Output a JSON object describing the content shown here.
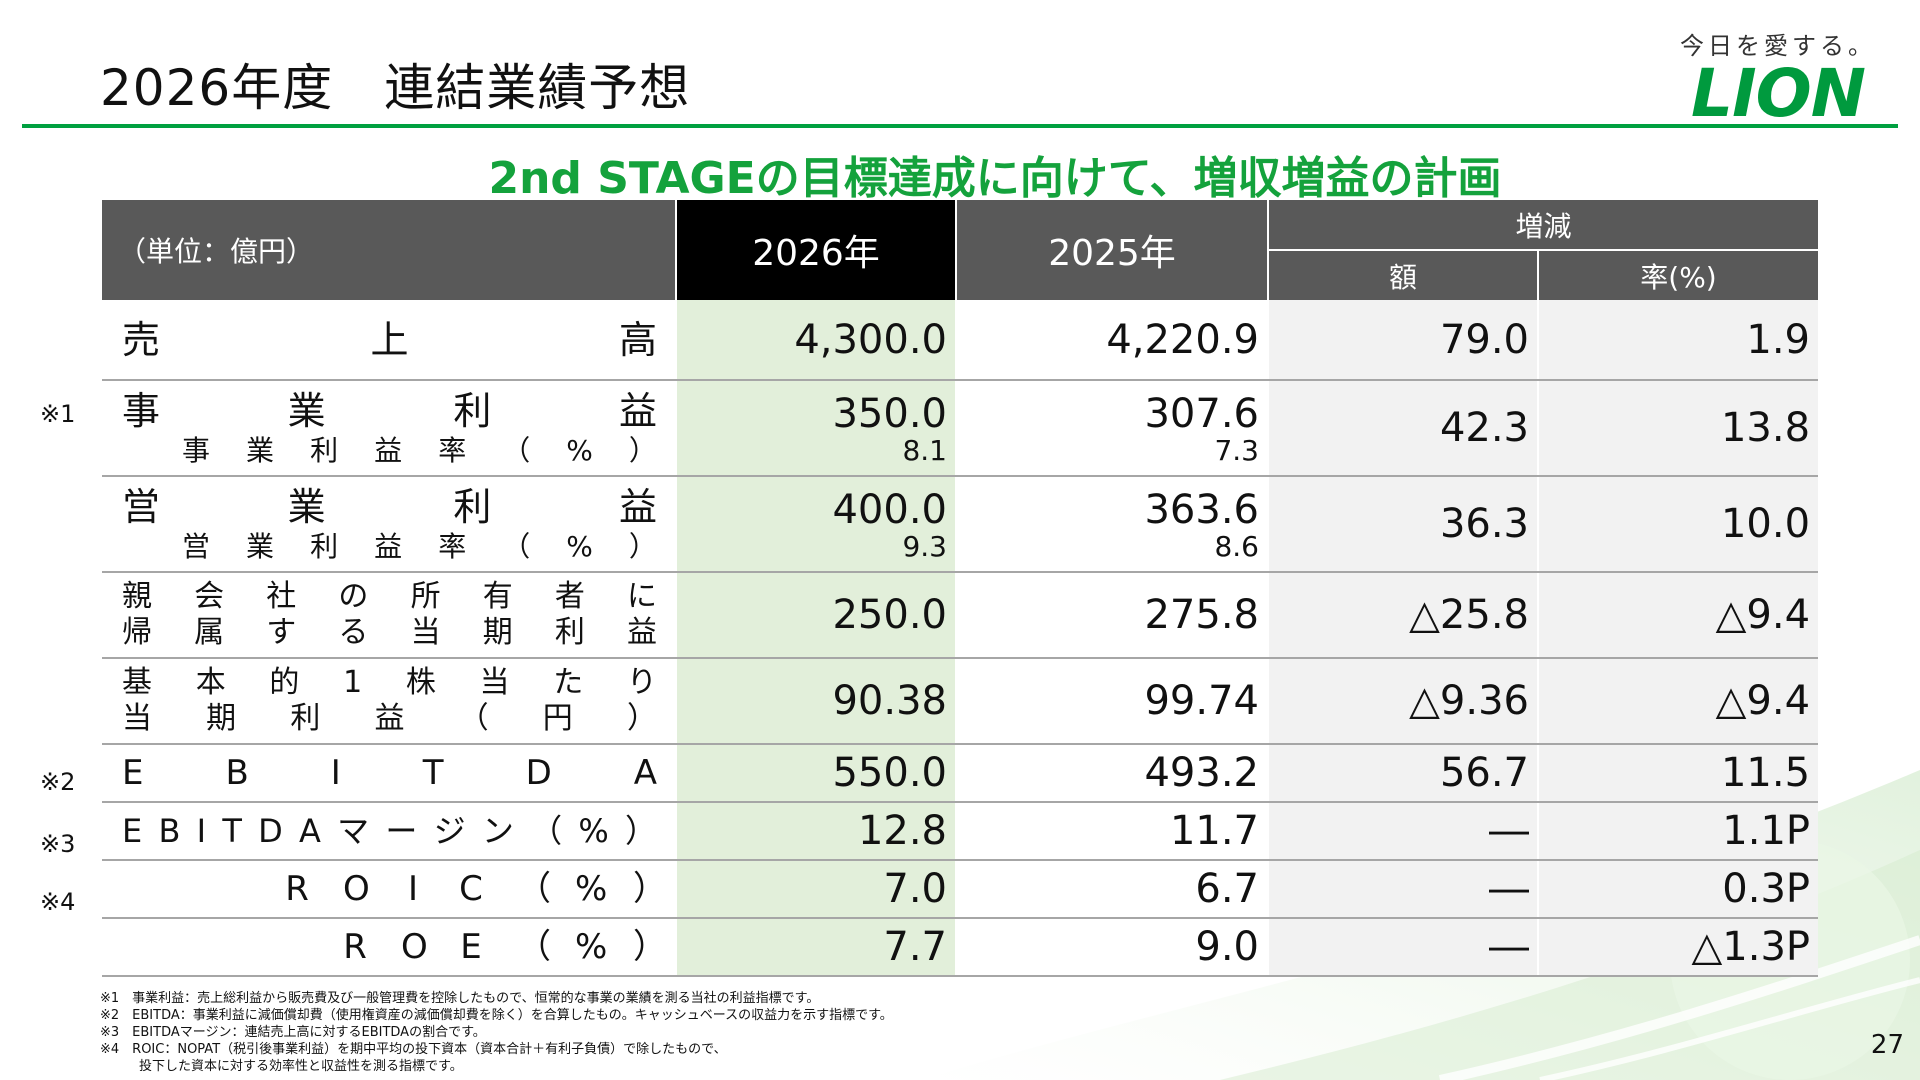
{
  "header": {
    "title": "2026年度　連結業績予想",
    "tagline": "今日を愛する。",
    "logo_text": "LION",
    "subtitle": "2nd STAGEの目標達成に向けて、増収増益の計画"
  },
  "table": {
    "unit": "（単位：億円）",
    "col_2026": "2026年",
    "col_2025": "2025年",
    "col_change": "増減",
    "col_amount": "額",
    "col_rate": "率(%)",
    "rows": [
      {
        "label": "売上高",
        "v2026": "4,300.0",
        "v2025": "4,220.9",
        "amount": "79.0",
        "rate": "1.9"
      },
      {
        "label": "事業利益",
        "sub_label": "事業利益率（%）",
        "v2026": "350.0",
        "v2026_sub": "8.1",
        "v2025": "307.6",
        "v2025_sub": "7.3",
        "amount": "42.3",
        "rate": "13.8"
      },
      {
        "label": "営業利益",
        "sub_label": "営業利益率（%）",
        "v2026": "400.0",
        "v2026_sub": "9.3",
        "v2025": "363.6",
        "v2025_sub": "8.6",
        "amount": "36.3",
        "rate": "10.0"
      },
      {
        "label_line1": "親会社の所有者に",
        "label_line2": "帰属する当期利益",
        "v2026": "250.0",
        "v2025": "275.8",
        "amount": "△25.8",
        "rate": "△9.4"
      },
      {
        "label_line1": "基本的1株当たり",
        "label_line2": "当期利益（円）",
        "v2026": "90.38",
        "v2025": "99.74",
        "amount": "△9.36",
        "rate": "△9.4"
      },
      {
        "label": "EBITDA",
        "v2026": "550.0",
        "v2025": "493.2",
        "amount": "56.7",
        "rate": "11.5"
      },
      {
        "label": "EBITDAマージン（%）",
        "v2026": "12.8",
        "v2025": "11.7",
        "amount": "―",
        "rate": "1.1P"
      },
      {
        "label": "ROIC（%）",
        "v2026": "7.0",
        "v2025": "6.7",
        "amount": "―",
        "rate": "0.3P"
      },
      {
        "label": "ROE（%）",
        "v2026": "7.7",
        "v2025": "9.0",
        "amount": "―",
        "rate": "△1.3P"
      }
    ]
  },
  "marks": [
    "※1",
    "※2",
    "※3",
    "※4"
  ],
  "notes": [
    "※1　事業利益：売上総利益から販売費及び一般管理費を控除したもので、恒常的な事業の業績を測る当社の利益指標です。",
    "※2　EBITDA：事業利益に減価償却費（使用権資産の減価償却費を除く）を合算したもの。キャッシュベースの収益力を示す指標です。",
    "※3　EBITDAマージン：連結売上高に対するEBITDAの割合です。",
    "※4　ROIC：NOPAT（税引後事業利益）を期中平均の投下資本（資本合計＋有利子負債）で除したもので、",
    "　　　投下した資本に対する効率性と収益性を測る指標です。"
  ],
  "page_number": "27",
  "colors": {
    "accent_green": "#14a23c",
    "header_gray": "#595959",
    "highlight_green": "#e2efda",
    "delta_gray": "#f2f2f2"
  }
}
